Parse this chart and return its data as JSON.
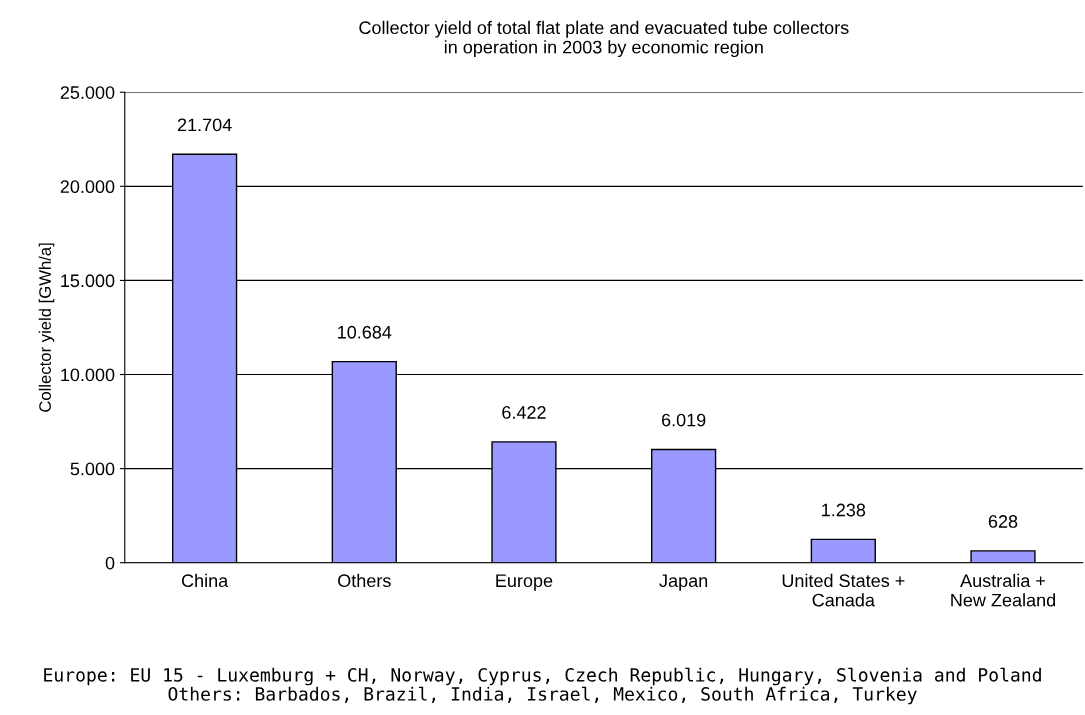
{
  "chart_data": {
    "type": "bar",
    "title": "Collector yield of total flat plate and evacuated tube collectors\nin operation in 2003 by economic region",
    "ylabel": "Collector yield [GWh/a]",
    "categories": [
      "China",
      "Others",
      "Europe",
      "Japan",
      "United States +\nCanada",
      "Australia +\nNew Zealand"
    ],
    "values": [
      21704,
      10684,
      6422,
      6019,
      1238,
      628
    ],
    "value_labels": [
      "21.704",
      "10.684",
      "6.422",
      "6.019",
      "1.238",
      "628"
    ],
    "color": "#9999ff",
    "ylim": [
      0,
      25000
    ],
    "yticks": [
      {
        "value": 0,
        "label": "0"
      },
      {
        "value": 5000,
        "label": "5.000"
      },
      {
        "value": 10000,
        "label": "10.000"
      },
      {
        "value": 15000,
        "label": "15.000"
      },
      {
        "value": 20000,
        "label": "20.000"
      },
      {
        "value": 25000,
        "label": "25.000"
      }
    ],
    "grid": "y",
    "annotations": [
      "Europe: EU 15 - Luxemburg + CH, Norway, Cyprus, Czech Republic, Hungary, Slovenia and Poland\nOthers: Barbados, Brazil, India, Israel, Mexico, South Africa, Turkey"
    ]
  }
}
